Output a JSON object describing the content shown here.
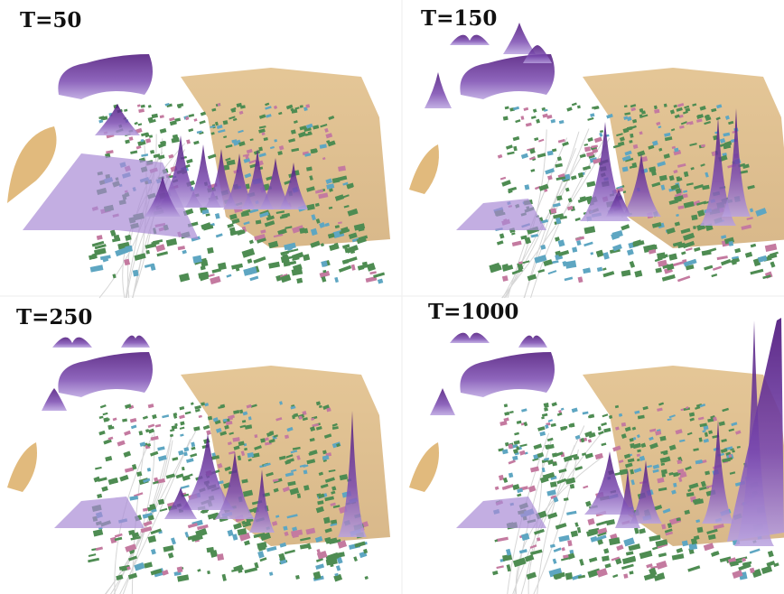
{
  "panels": [
    {
      "label": "T=50"
    },
    {
      "label": "T=150"
    },
    {
      "label": "T=250"
    },
    {
      "label": "T=1000"
    }
  ]
}
